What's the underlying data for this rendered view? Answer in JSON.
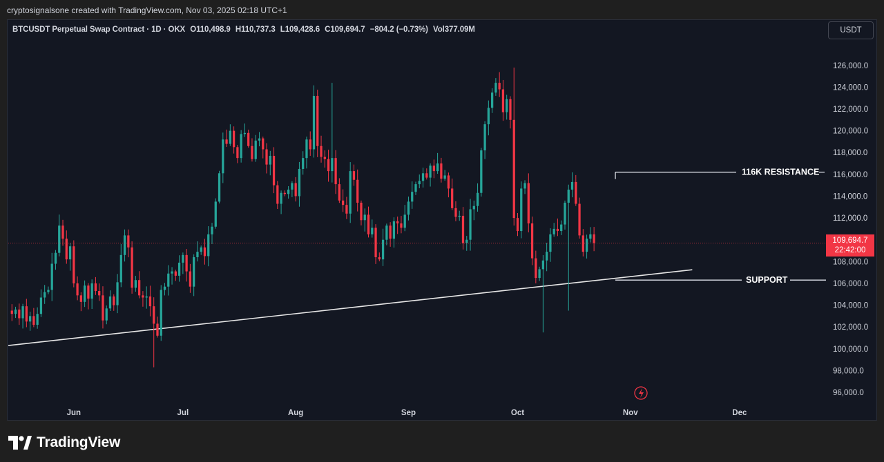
{
  "header": {
    "credit": "cryptosignalsone created with TradingView.com, Nov 03, 2025 02:18 UTC+1"
  },
  "legend": {
    "symbol": "BTCUSDT Perpetual Swap Contract · 1D · OKX",
    "open_label": "O",
    "open": "110,498.9",
    "high_label": "H",
    "high": "110,737.3",
    "low_label": "L",
    "low": "109,428.6",
    "close_label": "C",
    "close": "109,694.7",
    "change": "−804.2 (−0.73%)",
    "volume_label": "Vol",
    "volume": "377.09M"
  },
  "currency_button": "USDT",
  "price_tag": {
    "price": "109,694.7",
    "countdown": "22:42:00"
  },
  "footer": {
    "brand": "TradingView"
  },
  "colors": {
    "up": "#26a69a",
    "down": "#f23645",
    "background": "#131722",
    "grid_text": "#d1d4dc",
    "annotation": "#e0e3eb",
    "last_price_line": "#f23645"
  },
  "chart_data": {
    "type": "candlestick",
    "title": "BTCUSDT Perpetual Swap Contract · 1D · OKX",
    "y_ticks": [
      "126,000.0",
      "124,000.0",
      "122,000.0",
      "120,000.0",
      "118,000.0",
      "116,000.0",
      "114,000.0",
      "112,000.0",
      "110,000.0",
      "108,000.0",
      "106,000.0",
      "104,000.0",
      "102,000.0",
      "100,000.0",
      "98,000.0",
      "96,000.0"
    ],
    "y_tick_values": [
      126000,
      124000,
      122000,
      120000,
      118000,
      116000,
      114000,
      112000,
      110000,
      108000,
      106000,
      104000,
      102000,
      100000,
      98000,
      96000
    ],
    "ylim": [
      94800,
      128200
    ],
    "x_ticks": [
      {
        "label": "Jun",
        "date": "2025-06-01"
      },
      {
        "label": "Jul",
        "date": "2025-07-01"
      },
      {
        "label": "Aug",
        "date": "2025-08-01"
      },
      {
        "label": "Sep",
        "date": "2025-09-01"
      },
      {
        "label": "Oct",
        "date": "2025-10-01"
      },
      {
        "label": "Nov",
        "date": "2025-11-01"
      },
      {
        "label": "Dec",
        "date": "2025-12-01"
      }
    ],
    "xlim": [
      "2025-05-14",
      "2025-12-24"
    ],
    "last_price": 109694.7,
    "close_series": {
      "start_date": "2025-05-15",
      "close": [
        103200,
        103600,
        102800,
        103900,
        102500,
        103000,
        102200,
        103200,
        104700,
        105200,
        105400,
        107800,
        108800,
        111300,
        110100,
        108200,
        109400,
        106000,
        104900,
        104300,
        105800,
        104600,
        106000,
        105300,
        104900,
        102600,
        103700,
        104800,
        104000,
        106100,
        108600,
        110400,
        109300,
        105600,
        106300,
        104900,
        104700,
        104800,
        103900,
        102300,
        101200,
        105400,
        105700,
        106900,
        107100,
        106700,
        107900,
        108600,
        107100,
        105700,
        108400,
        108900,
        109300,
        108500,
        110500,
        111200,
        113500,
        116100,
        119200,
        118800,
        120000,
        118500,
        117500,
        119700,
        119800,
        118600,
        117400,
        119100,
        119300,
        118300,
        116900,
        117700,
        115000,
        113300,
        114300,
        114200,
        114600,
        115200,
        114000,
        116500,
        117500,
        119200,
        118300,
        123200,
        118600,
        117600,
        117400,
        116300,
        117500,
        115100,
        113600,
        113200,
        112400,
        116300,
        115500,
        113400,
        111800,
        112300,
        110500,
        111100,
        108400,
        108200,
        110000,
        111300,
        110100,
        111700,
        111500,
        111100,
        112300,
        113500,
        114400,
        115100,
        115400,
        116100,
        115700,
        116800,
        116300,
        117000,
        115600,
        115900,
        114700,
        112900,
        112100,
        112200,
        109700,
        110000,
        112800,
        113100,
        114300,
        118200,
        120600,
        122100,
        123500,
        124400,
        123800,
        121700,
        122900,
        121000,
        112000,
        110800,
        114700,
        115200,
        111500,
        108300,
        106500,
        107300,
        108100,
        108900,
        110500,
        111000,
        110800,
        111400,
        113400,
        114600,
        115300,
        113300,
        110400,
        108900,
        110100,
        110500,
        109700
      ]
    },
    "annotations": [
      {
        "label": "116K RESISTANCE",
        "level": 116200
      },
      {
        "label": "SUPPORT",
        "level": 106300
      }
    ],
    "trendline": {
      "start": {
        "date": "2025-05-14",
        "price": 100300
      },
      "end": {
        "date": "2025-11-18",
        "price": 107250
      }
    }
  }
}
